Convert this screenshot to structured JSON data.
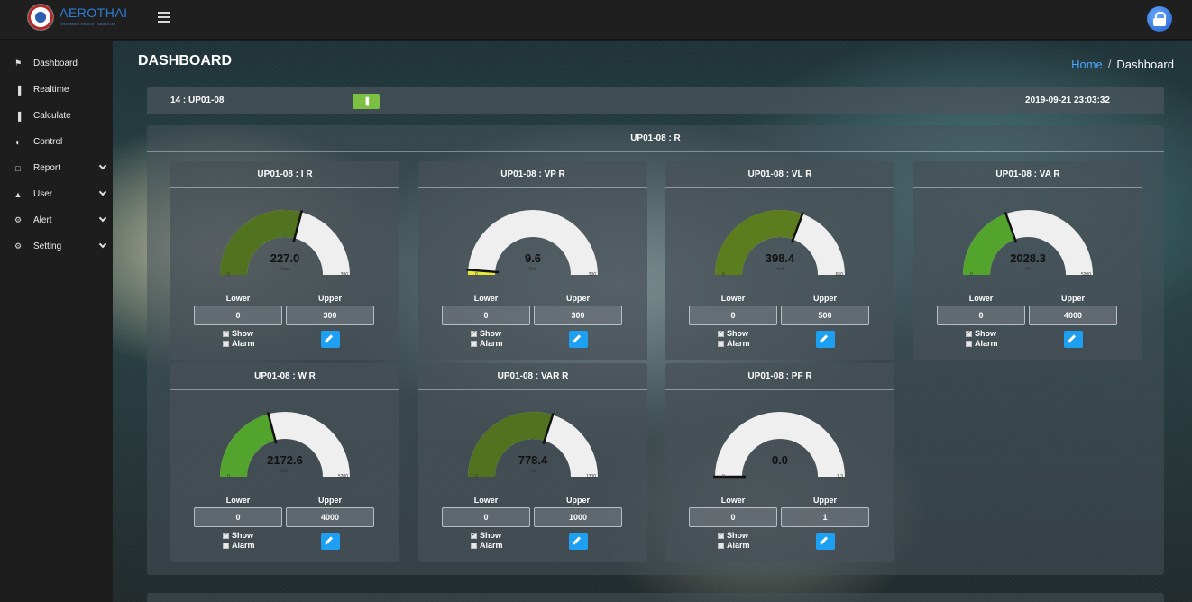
{
  "header": {
    "brand": "AEROTHAI",
    "brand_sub": "Aeronautical Radio of Thailand Ltd."
  },
  "sidebar": {
    "items": [
      {
        "label": "Dashboard",
        "icon": "home-icon",
        "glyph": "⚑",
        "chevron": false
      },
      {
        "label": "Realtime",
        "icon": "chart-icon",
        "glyph": "▐",
        "chevron": false
      },
      {
        "label": "Calculate",
        "icon": "chart-icon",
        "glyph": "▐",
        "chevron": false
      },
      {
        "label": "Control",
        "icon": "toggle-icon",
        "glyph": "◐",
        "chevron": false
      },
      {
        "label": "Report",
        "icon": "file-icon",
        "glyph": "□",
        "chevron": true
      },
      {
        "label": "User",
        "icon": "user-icon",
        "glyph": "▲",
        "chevron": true
      },
      {
        "label": "Alert",
        "icon": "gear-icon",
        "glyph": "⚙",
        "chevron": true
      },
      {
        "label": "Setting",
        "icon": "gear-icon",
        "glyph": "⚙",
        "chevron": true
      }
    ]
  },
  "page": {
    "title": "DASHBOARD",
    "breadcrumb_home": "Home",
    "breadcrumb_sep": "/",
    "breadcrumb_current": "Dashboard"
  },
  "device": {
    "id": "14 : UP01-08",
    "timestamp": "2019-09-21 23:03:32",
    "chart_button_icon": "bar-chart-icon"
  },
  "group": {
    "title": "UP01-08 : R"
  },
  "labels": {
    "lower": "Lower",
    "upper": "Upper",
    "show": "Show",
    "alarm": "Alarm"
  },
  "colors": {
    "dark_green": "#51721f",
    "mid_green": "#5b7d1d",
    "bright_green": "#52a42c",
    "yellow": "#e7e737",
    "track": "#efefef",
    "edit_button": "#1ea0f2",
    "chart_button": "#7bc043",
    "link": "#4aa3ff"
  },
  "gauges": [
    {
      "title": "UP01-08 : I R",
      "value": 227.0,
      "display": "227.0",
      "unit": "Amp",
      "min": 0,
      "max": 390,
      "min_label": "0",
      "max_label": "390",
      "lower": "0",
      "upper": "300",
      "show": true,
      "alarm": false,
      "color": "#51721f"
    },
    {
      "title": "UP01-08 : VP R",
      "value": 9.6,
      "display": "9.6",
      "unit": "Volt",
      "min": 0,
      "max": 390,
      "min_label": "0",
      "max_label": "390",
      "lower": "0",
      "upper": "300",
      "show": true,
      "alarm": false,
      "color": "#e7e737"
    },
    {
      "title": "UP01-08 : VL R",
      "value": 398.4,
      "display": "398.4",
      "unit": "Volt",
      "min": 0,
      "max": 650,
      "min_label": "0",
      "max_label": "650",
      "lower": "0",
      "upper": "500",
      "show": true,
      "alarm": false,
      "color": "#5b7d1d"
    },
    {
      "title": "UP01-08 : VA R",
      "value": 2028.3,
      "display": "2028.3",
      "unit": "VA",
      "min": 0,
      "max": 5200,
      "min_label": "0",
      "max_label": "5200",
      "lower": "0",
      "upper": "4000",
      "show": true,
      "alarm": false,
      "color": "#52a42c"
    },
    {
      "title": "UP01-08 : W R",
      "value": 2172.6,
      "display": "2172.6",
      "unit": "Watt",
      "min": 0,
      "max": 5200,
      "min_label": "0",
      "max_label": "5200",
      "lower": "0",
      "upper": "4000",
      "show": true,
      "alarm": false,
      "color": "#52a42c"
    },
    {
      "title": "UP01-08 : VAR R",
      "value": 778.4,
      "display": "778.4",
      "unit": "Var",
      "min": 0,
      "max": 1300,
      "min_label": "0",
      "max_label": "1300",
      "lower": "0",
      "upper": "1000",
      "show": true,
      "alarm": false,
      "color": "#51721f"
    },
    {
      "title": "UP01-08 : PF R",
      "value": 0.0,
      "display": "0.0",
      "unit": "",
      "min": 0,
      "max": 1.3,
      "min_label": "0",
      "max_label": "1.3",
      "lower": "0",
      "upper": "1",
      "show": true,
      "alarm": false,
      "color": "#51721f"
    }
  ]
}
